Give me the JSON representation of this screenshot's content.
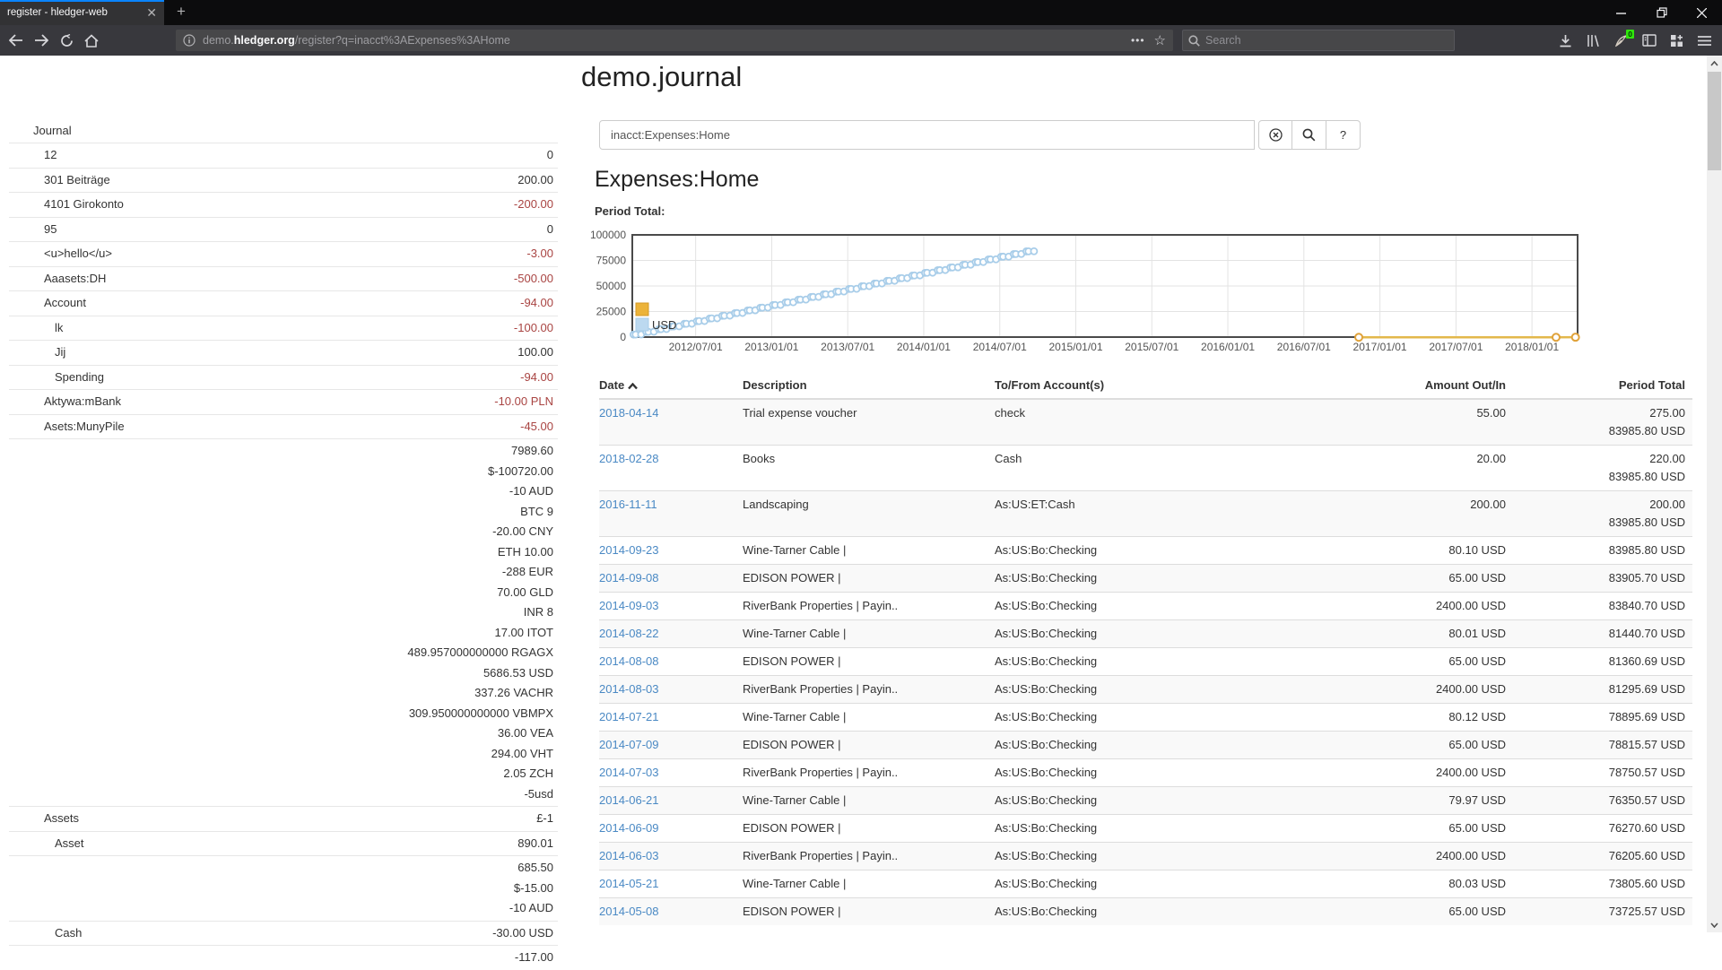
{
  "browser": {
    "tab_title": "register - hledger-web",
    "url": {
      "prefix": "demo.",
      "host": "hledger.org",
      "path": "/register?q=inacct%3AExpenses%3AHome"
    },
    "search_placeholder": "Search",
    "extension_badge": "0"
  },
  "sidebar": {
    "rows": [
      {
        "label": "Journal",
        "indent": 0,
        "values": []
      },
      {
        "label": "12",
        "indent": 1,
        "values": [
          {
            "t": "0",
            "neg": false
          }
        ]
      },
      {
        "label": "301 Beiträge",
        "indent": 1,
        "values": [
          {
            "t": "200.00",
            "neg": false
          }
        ]
      },
      {
        "label": "4101 Girokonto",
        "indent": 1,
        "values": [
          {
            "t": "-200.00",
            "neg": true
          }
        ]
      },
      {
        "label": "95",
        "indent": 1,
        "values": [
          {
            "t": "0",
            "neg": false
          }
        ]
      },
      {
        "label": "<u>hello</u>",
        "indent": 1,
        "values": [
          {
            "t": "-3.00",
            "neg": true
          }
        ]
      },
      {
        "label": "Aaasets:DH",
        "indent": 1,
        "values": [
          {
            "t": "-500.00",
            "neg": true
          }
        ]
      },
      {
        "label": "Account",
        "indent": 1,
        "values": [
          {
            "t": "-94.00",
            "neg": true
          }
        ]
      },
      {
        "label": "lk",
        "indent": 2,
        "values": [
          {
            "t": "-100.00",
            "neg": true
          }
        ]
      },
      {
        "label": "Jij",
        "indent": 2,
        "values": [
          {
            "t": "100.00",
            "neg": false
          }
        ]
      },
      {
        "label": "Spending",
        "indent": 2,
        "values": [
          {
            "t": "-94.00",
            "neg": true
          }
        ]
      },
      {
        "label": "Aktywa:mBank",
        "indent": 1,
        "values": [
          {
            "t": "-10.00 PLN",
            "neg": true
          }
        ]
      },
      {
        "label": "Asets:MunyPile",
        "indent": 1,
        "values": [
          {
            "t": "-45.00",
            "neg": true
          }
        ]
      },
      {
        "label": "",
        "indent": 1,
        "values": [
          {
            "t": "7989.60",
            "neg": false
          },
          {
            "t": "$-100720.00",
            "neg": false
          },
          {
            "t": "-10 AUD",
            "neg": false
          },
          {
            "t": "BTC 9",
            "neg": false
          },
          {
            "t": "-20.00 CNY",
            "neg": false
          },
          {
            "t": "ETH 10.00",
            "neg": false
          },
          {
            "t": "-288 EUR",
            "neg": false
          },
          {
            "t": "70.00 GLD",
            "neg": false
          },
          {
            "t": "INR 8",
            "neg": false
          },
          {
            "t": "17.00 ITOT",
            "neg": false
          },
          {
            "t": "489.957000000000 RGAGX",
            "neg": false
          },
          {
            "t": "5686.53 USD",
            "neg": false
          },
          {
            "t": "337.26 VACHR",
            "neg": false
          },
          {
            "t": "309.950000000000 VBMPX",
            "neg": false
          },
          {
            "t": "36.00 VEA",
            "neg": false
          },
          {
            "t": "294.00 VHT",
            "neg": false
          },
          {
            "t": "2.05 ZCH",
            "neg": false
          },
          {
            "t": "-5usd",
            "neg": false
          }
        ]
      },
      {
        "label": "Assets",
        "indent": 1,
        "values": [
          {
            "t": "£-1",
            "neg": false
          }
        ]
      },
      {
        "label": "Asset",
        "indent": 2,
        "values": [
          {
            "t": "890.01",
            "neg": false
          }
        ]
      },
      {
        "label": "",
        "indent": 2,
        "values": [
          {
            "t": "685.50",
            "neg": false
          },
          {
            "t": "$-15.00",
            "neg": false
          },
          {
            "t": "-10 AUD",
            "neg": false
          }
        ]
      },
      {
        "label": "Cash",
        "indent": 2,
        "values": [
          {
            "t": "-30.00 USD",
            "neg": false
          }
        ]
      },
      {
        "label": "",
        "indent": 2,
        "values": [
          {
            "t": "-117.00",
            "neg": false
          }
        ]
      }
    ]
  },
  "main": {
    "title": "demo.journal",
    "query": "inacct:Expenses:Home",
    "help_button": "?",
    "heading": "Expenses:Home",
    "period_total_label": "Period Total:"
  },
  "register": {
    "headers": [
      "Date",
      "Description",
      "To/From Account(s)",
      "Amount Out/In",
      "Period Total"
    ],
    "rows": [
      {
        "date": "2018-04-14",
        "desc": "Trial expense voucher",
        "acct": "check",
        "amt": "55.00",
        "totals": [
          "275.00",
          "83985.80 USD"
        ]
      },
      {
        "date": "2018-02-28",
        "desc": "Books",
        "acct": "Cash",
        "amt": "20.00",
        "totals": [
          "220.00",
          "83985.80 USD"
        ]
      },
      {
        "date": "2016-11-11",
        "desc": "Landscaping",
        "acct": "As:US:ET:Cash",
        "amt": "200.00",
        "totals": [
          "200.00",
          "83985.80 USD"
        ]
      },
      {
        "date": "2014-09-23",
        "desc": "Wine-Tarner Cable |",
        "acct": "As:US:Bo:Checking",
        "amt": "80.10 USD",
        "totals": [
          "83985.80 USD"
        ]
      },
      {
        "date": "2014-09-08",
        "desc": "EDISON POWER |",
        "acct": "As:US:Bo:Checking",
        "amt": "65.00 USD",
        "totals": [
          "83905.70 USD"
        ]
      },
      {
        "date": "2014-09-03",
        "desc": "RiverBank Properties | Payin..",
        "acct": "As:US:Bo:Checking",
        "amt": "2400.00 USD",
        "totals": [
          "83840.70 USD"
        ]
      },
      {
        "date": "2014-08-22",
        "desc": "Wine-Tarner Cable |",
        "acct": "As:US:Bo:Checking",
        "amt": "80.01 USD",
        "totals": [
          "81440.70 USD"
        ]
      },
      {
        "date": "2014-08-08",
        "desc": "EDISON POWER |",
        "acct": "As:US:Bo:Checking",
        "amt": "65.00 USD",
        "totals": [
          "81360.69 USD"
        ]
      },
      {
        "date": "2014-08-03",
        "desc": "RiverBank Properties | Payin..",
        "acct": "As:US:Bo:Checking",
        "amt": "2400.00 USD",
        "totals": [
          "81295.69 USD"
        ]
      },
      {
        "date": "2014-07-21",
        "desc": "Wine-Tarner Cable |",
        "acct": "As:US:Bo:Checking",
        "amt": "80.12 USD",
        "totals": [
          "78895.69 USD"
        ]
      },
      {
        "date": "2014-07-09",
        "desc": "EDISON POWER |",
        "acct": "As:US:Bo:Checking",
        "amt": "65.00 USD",
        "totals": [
          "78815.57 USD"
        ]
      },
      {
        "date": "2014-07-03",
        "desc": "RiverBank Properties | Payin..",
        "acct": "As:US:Bo:Checking",
        "amt": "2400.00 USD",
        "totals": [
          "78750.57 USD"
        ]
      },
      {
        "date": "2014-06-21",
        "desc": "Wine-Tarner Cable |",
        "acct": "As:US:Bo:Checking",
        "amt": "79.97 USD",
        "totals": [
          "76350.57 USD"
        ]
      },
      {
        "date": "2014-06-09",
        "desc": "EDISON POWER |",
        "acct": "As:US:Bo:Checking",
        "amt": "65.00 USD",
        "totals": [
          "76270.60 USD"
        ]
      },
      {
        "date": "2014-06-03",
        "desc": "RiverBank Properties | Payin..",
        "acct": "As:US:Bo:Checking",
        "amt": "2400.00 USD",
        "totals": [
          "76205.60 USD"
        ]
      },
      {
        "date": "2014-05-21",
        "desc": "Wine-Tarner Cable |",
        "acct": "As:US:Bo:Checking",
        "amt": "80.03 USD",
        "totals": [
          "73805.60 USD"
        ]
      },
      {
        "date": "2014-05-08",
        "desc": "EDISON POWER |",
        "acct": "As:US:Bo:Checking",
        "amt": "65.00 USD",
        "totals": [
          "73725.57 USD"
        ]
      }
    ]
  },
  "chart_data": {
    "type": "scatter",
    "title": "Period Total:",
    "xlabel": "",
    "ylabel": "",
    "x_tick_labels": [
      "2012/07/01",
      "2013/01/01",
      "2013/07/01",
      "2014/01/01",
      "2014/07/01",
      "2015/01/01",
      "2015/07/01",
      "2016/01/01",
      "2016/07/01",
      "2017/01/01",
      "2017/07/01",
      "2018/01/01"
    ],
    "x_range_months": [
      "2012-02-01",
      "2018-04-20"
    ],
    "y_ticks": [
      0,
      25000,
      50000,
      75000,
      100000
    ],
    "ylim": [
      0,
      100000
    ],
    "grid": true,
    "legend_position": "middle-left",
    "legend": [
      {
        "label": "",
        "fill": "#ecb339",
        "stroke": "#d39a26"
      },
      {
        "label": "USD",
        "fill": "#bcd9f0",
        "stroke": "#a8cde9"
      }
    ],
    "series": [
      {
        "name": "USD",
        "style": "points",
        "stroke": "#a8cde9",
        "note": "cumulative USD period total, 3 postings per month rising to 83985.80 by 2014-09",
        "start_month": "2012-02",
        "months": 32,
        "pattern_days": [
          3,
          8,
          21
        ],
        "pattern_amounts": [
          2479.56,
          65,
          80
        ],
        "cumulative_final": 83985.8
      },
      {
        "name": "",
        "style": "line+points",
        "stroke": "#e0a23a",
        "line": "#e3b84c",
        "points": [
          {
            "date": "2016-11-11",
            "value": 200
          },
          {
            "date": "2018-02-28",
            "value": 220
          },
          {
            "date": "2018-04-14",
            "value": 275
          }
        ]
      }
    ]
  }
}
